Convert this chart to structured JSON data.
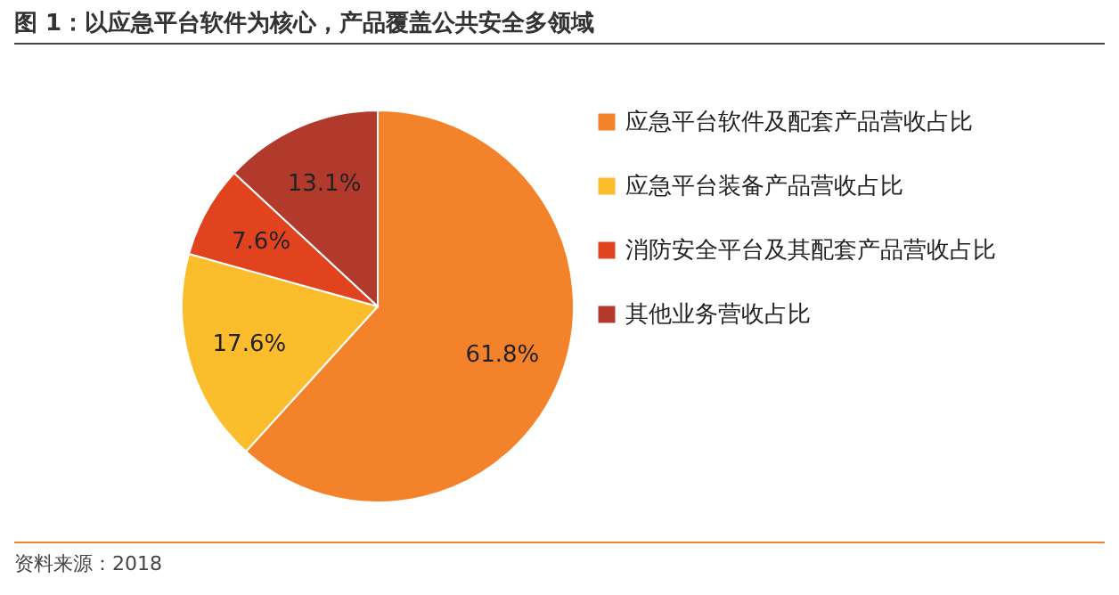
{
  "chart_data": {
    "type": "pie",
    "title": "图 1：以应急平台软件为核心，产品覆盖公共安全多领域",
    "categories": [
      "应急平台软件及配套产品营收占比",
      "应急平台装备产品营收占比",
      "消防安全平台及其配套产品营收占比",
      "其他业务营收占比"
    ],
    "values": [
      61.8,
      17.6,
      7.6,
      13.1
    ],
    "colors": [
      "#f4822a",
      "#fbbd2c",
      "#e2431f",
      "#b23a2c"
    ],
    "value_labels": [
      "61.8%",
      "17.6%",
      "7.6%",
      "13.1%"
    ],
    "legend": "right",
    "annotations": [
      "资料来源：2018"
    ]
  }
}
